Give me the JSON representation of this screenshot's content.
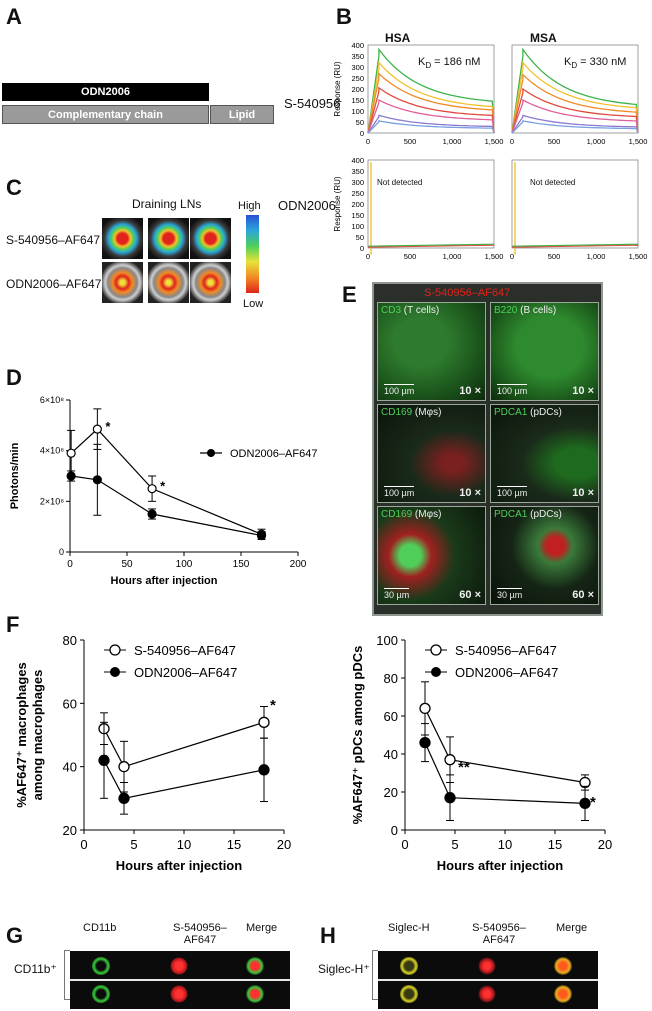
{
  "panels": {
    "A": "A",
    "B": "B",
    "C": "C",
    "D": "D",
    "E": "E",
    "F": "F",
    "G": "G",
    "H": "H"
  },
  "panelA": {
    "odn_bar": "ODN2006",
    "complementary_bar": "Complementary chain",
    "lipid_bar": "Lipid",
    "row_label": "S-540956"
  },
  "panelB": {
    "hsa_title": "HSA",
    "msa_title": "MSA",
    "hsa_kd": "K",
    "hsa_kd_sub": "D",
    "hsa_kd_value": " = 186 nM",
    "msa_kd": "K",
    "msa_kd_sub": "D",
    "msa_kd_value": " = 330 nM",
    "ylabel": "Response (RU)",
    "yticks": [
      "0",
      "50",
      "100",
      "150",
      "200",
      "250",
      "300",
      "350",
      "400"
    ],
    "xticks": [
      "0",
      "500",
      "1,000",
      "1,500"
    ],
    "msa_xticks": [
      "0",
      "500",
      "1,000",
      "1,500"
    ],
    "row2_label": "ODN2006",
    "not_detected_left": "Not detected",
    "not_detected_right": "Not detected",
    "curve_colors": [
      "#3cb44b",
      "#f2c12e",
      "#f08a24",
      "#e04a3c",
      "#e0609a",
      "#8a7ad0",
      "#7aa0e0"
    ]
  },
  "panelC": {
    "title": "Draining LNs",
    "row1": "S-540956–AF647",
    "row2": "ODN2006–AF647",
    "scale_high": "High",
    "scale_low": "Low"
  },
  "panelD": {
    "ylabel": "Photons/min",
    "xlabel": "Hours after injection",
    "legend": "ODN2006–AF647",
    "yticks": [
      "0",
      "2×10⁸",
      "4×10⁸",
      "6×10⁸"
    ],
    "xticks": [
      "0",
      "50",
      "100",
      "150",
      "200"
    ],
    "star": "*"
  },
  "panelE": {
    "header": "S-540956–AF647",
    "tiles": [
      {
        "marker": "CD3",
        "cell": " (T cells)",
        "scale": "100 µm",
        "mag": "10 ×"
      },
      {
        "marker": "B220",
        "cell": " (B cells)",
        "scale": "100 µm",
        "mag": "10 ×"
      },
      {
        "marker": "CD169",
        "cell": " (Mφs)",
        "scale": "100 µm",
        "mag": "10 ×"
      },
      {
        "marker": "PDCA1",
        "cell": " (pDCs)",
        "scale": "100 µm",
        "mag": "10 ×"
      },
      {
        "marker": "CD169",
        "cell": " (Mφs)",
        "scale": "30 µm",
        "mag": "60 ×"
      },
      {
        "marker": "PDCA1",
        "cell": " (pDCs)",
        "scale": "30 µm",
        "mag": "60 ×"
      }
    ]
  },
  "panelF": {
    "legend_open": "S-540956–AF647",
    "legend_filled": "ODN2006–AF647",
    "left_ylabel_1": "%AF647⁺ macrophages",
    "left_ylabel_2": "among macrophages",
    "right_ylabel": "%AF647⁺ pDCs among pDCs",
    "xlabel": "Hours after injection",
    "left_yticks": [
      "20",
      "40",
      "60",
      "80"
    ],
    "right_yticks": [
      "0",
      "20",
      "40",
      "60",
      "80",
      "100"
    ],
    "xticks": [
      "0",
      "5",
      "10",
      "15",
      "20"
    ],
    "star": "*",
    "double_star": "**"
  },
  "panelG": {
    "col1": "CD11b",
    "col2a": "S-540956–",
    "col2b": "AF647",
    "col3": "Merge",
    "row_label": "CD11b⁺"
  },
  "panelH": {
    "col1": "Siglec-H",
    "col2a": "S-540956–",
    "col2b": "AF647",
    "col3": "Merge",
    "row_label": "Siglec-H⁺"
  },
  "chart_data": [
    {
      "type": "line",
      "panel": "B-HSA",
      "title": "HSA",
      "ylabel": "Response (RU)",
      "ylim": [
        0,
        400
      ],
      "xlim": [
        0,
        1500
      ],
      "series_peaks_RU": [
        380,
        320,
        270,
        205,
        150,
        80,
        55
      ],
      "series_end_RU": [
        145,
        120,
        105,
        80,
        60,
        30,
        22
      ]
    },
    {
      "type": "line",
      "panel": "B-MSA",
      "title": "MSA",
      "ylabel": "Response (RU)",
      "ylim": [
        0,
        400
      ],
      "xlim": [
        0,
        1500
      ],
      "series_peaks_RU": [
        380,
        320,
        265,
        200,
        150,
        80,
        55
      ],
      "series_end_RU": [
        130,
        115,
        95,
        75,
        55,
        28,
        20
      ]
    },
    {
      "type": "line",
      "panel": "D",
      "xlabel": "Hours after injection",
      "ylabel": "Photons/min",
      "ylim": [
        0,
        600000000
      ],
      "xlim": [
        0,
        200
      ],
      "series": [
        {
          "name": "S-540956–AF647",
          "x": [
            1,
            24,
            72,
            168
          ],
          "y": [
            390000000,
            485000000,
            250000000,
            70000000
          ],
          "err": [
            90000000,
            80000000,
            50000000,
            20000000
          ]
        },
        {
          "name": "ODN2006–AF647",
          "x": [
            1,
            24,
            72,
            168
          ],
          "y": [
            300000000,
            285000000,
            150000000,
            65000000
          ],
          "err": [
            20000000,
            140000000,
            20000000,
            15000000
          ]
        }
      ]
    },
    {
      "type": "line",
      "panel": "F-left",
      "xlabel": "Hours after injection",
      "ylim": [
        20,
        80
      ],
      "xlim": [
        0,
        20
      ],
      "series": [
        {
          "name": "S-540956–AF647",
          "x": [
            2,
            4,
            18
          ],
          "y": [
            52,
            40,
            54
          ],
          "err": [
            5,
            8,
            5
          ]
        },
        {
          "name": "ODN2006–AF647",
          "x": [
            2,
            4,
            18
          ],
          "y": [
            42,
            30,
            39
          ],
          "err": [
            12,
            5,
            10
          ]
        }
      ]
    },
    {
      "type": "line",
      "panel": "F-right",
      "xlabel": "Hours after injection",
      "ylim": [
        0,
        100
      ],
      "xlim": [
        0,
        20
      ],
      "series": [
        {
          "name": "S-540956–AF647",
          "x": [
            2,
            4.5,
            18
          ],
          "y": [
            64,
            37,
            25
          ],
          "err": [
            14,
            12,
            4
          ]
        },
        {
          "name": "ODN2006–AF647",
          "x": [
            2,
            4.5,
            18
          ],
          "y": [
            46,
            17,
            14
          ],
          "err": [
            10,
            12,
            9
          ]
        }
      ]
    }
  ]
}
